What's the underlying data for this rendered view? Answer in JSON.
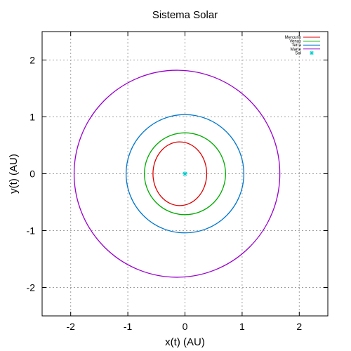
{
  "chart_data": {
    "type": "line",
    "title": "Sistema Solar",
    "xlabel": "x(t) (AU)",
    "ylabel": "y(t) (AU)",
    "xlim": [
      -2.5,
      2.5
    ],
    "ylim": [
      -2.5,
      2.5
    ],
    "xticks": [
      -2,
      -1,
      0,
      1,
      2
    ],
    "yticks": [
      -2,
      -1,
      0,
      1,
      2
    ],
    "grid": true,
    "legend_position": "top-right",
    "series": [
      {
        "name": "Mercurio",
        "color": "#dd0000",
        "orbit": {
          "center_x": -0.09,
          "center_y": 0.0,
          "semi_major": 0.47,
          "semi_minor": 0.56
        }
      },
      {
        "name": "Venus",
        "color": "#00aa00",
        "orbit": {
          "center_x": 0.0,
          "center_y": 0.0,
          "semi_major": 0.71,
          "semi_minor": 0.72
        }
      },
      {
        "name": "Terra",
        "color": "#0077cc",
        "orbit": {
          "center_x": 0.0,
          "center_y": 0.0,
          "semi_major": 1.03,
          "semi_minor": 1.04
        }
      },
      {
        "name": "Marte",
        "color": "#9900cc",
        "orbit": {
          "center_x": -0.14,
          "center_y": 0.0,
          "semi_major": 1.8,
          "semi_minor": 1.82
        }
      },
      {
        "name": "Sol",
        "color": "#00cccc",
        "marker": "star",
        "x": [
          0
        ],
        "y": [
          0
        ]
      }
    ]
  }
}
